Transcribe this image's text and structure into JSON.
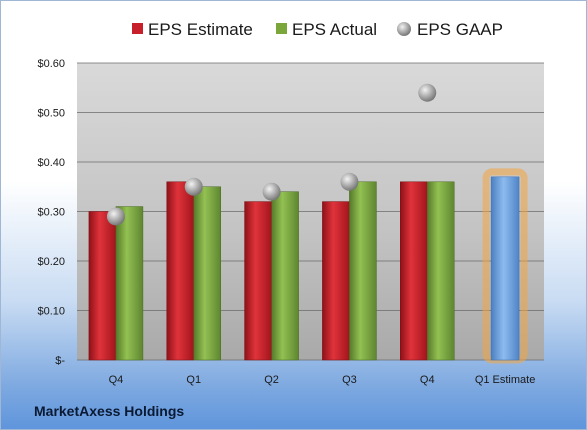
{
  "chart_data": {
    "type": "bar",
    "categories": [
      "Q4",
      "Q1",
      "Q2",
      "Q3",
      "Q4",
      "Q1 Estimate"
    ],
    "series": [
      {
        "name": "EPS Estimate",
        "values": [
          0.3,
          0.36,
          0.32,
          0.32,
          0.36,
          null
        ],
        "color": "#c8202a"
      },
      {
        "name": "EPS Actual",
        "values": [
          0.31,
          0.35,
          0.34,
          0.36,
          0.36,
          null
        ],
        "color": "#7aa63a"
      },
      {
        "name": "EPS GAAP",
        "type": "scatter",
        "values": [
          0.29,
          0.35,
          0.34,
          0.36,
          0.54,
          null
        ],
        "color": "#a9a9a9"
      },
      {
        "name": "",
        "values": [
          null,
          null,
          null,
          null,
          null,
          0.37
        ],
        "color": "#6fa0d8",
        "highlight": "#f4a640"
      }
    ],
    "yticks": [
      "$-",
      "$0.10",
      "$0.20",
      "$0.30",
      "$0.40",
      "$0.50",
      "$0.60"
    ],
    "ylim": [
      0,
      0.6
    ],
    "grid": true,
    "legend": "top"
  },
  "company_label": "MarketAxess Holdings"
}
